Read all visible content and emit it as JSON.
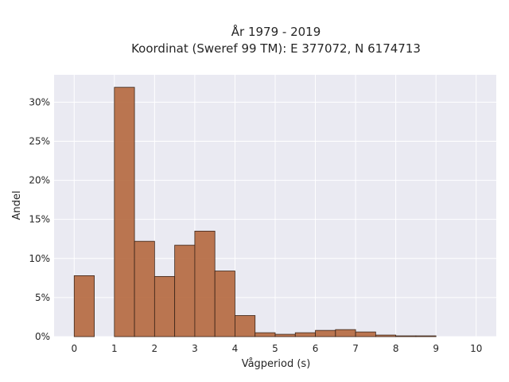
{
  "chart_data": {
    "type": "bar",
    "title": "År 1979 - 2019",
    "subtitle": "Koordinat (Sweref 99 TM): E 377072, N 6174713",
    "xlabel": "Vågperiod (s)",
    "ylabel": "Andel",
    "xlim": [
      -0.5,
      10.5
    ],
    "ylim": [
      0,
      0.335
    ],
    "grid": true,
    "bin_width": 0.5,
    "x_ticks": [
      "0",
      "1",
      "2",
      "3",
      "4",
      "5",
      "6",
      "7",
      "8",
      "9",
      "10"
    ],
    "y_ticks": [
      "0%",
      "5%",
      "10%",
      "15%",
      "20%",
      "25%",
      "30%"
    ],
    "bins": [
      {
        "start": 0.0,
        "end": 0.5,
        "value": 0.078
      },
      {
        "start": 1.0,
        "end": 1.5,
        "value": 0.319
      },
      {
        "start": 1.5,
        "end": 2.0,
        "value": 0.122
      },
      {
        "start": 2.0,
        "end": 2.5,
        "value": 0.077
      },
      {
        "start": 2.5,
        "end": 3.0,
        "value": 0.117
      },
      {
        "start": 3.0,
        "end": 3.5,
        "value": 0.135
      },
      {
        "start": 3.5,
        "end": 4.0,
        "value": 0.084
      },
      {
        "start": 4.0,
        "end": 4.5,
        "value": 0.027
      },
      {
        "start": 4.5,
        "end": 5.0,
        "value": 0.005
      },
      {
        "start": 5.0,
        "end": 5.5,
        "value": 0.003
      },
      {
        "start": 5.5,
        "end": 6.0,
        "value": 0.005
      },
      {
        "start": 6.0,
        "end": 6.5,
        "value": 0.008
      },
      {
        "start": 6.5,
        "end": 7.0,
        "value": 0.009
      },
      {
        "start": 7.0,
        "end": 7.5,
        "value": 0.006
      },
      {
        "start": 7.5,
        "end": 8.0,
        "value": 0.002
      },
      {
        "start": 8.0,
        "end": 8.5,
        "value": 0.001
      },
      {
        "start": 8.5,
        "end": 9.0,
        "value": 0.001
      }
    ],
    "colors": {
      "bar_fill": "#b5683e",
      "bar_stroke": "#3a2418",
      "plot_background": "#eaeaf2",
      "grid": "#ffffff"
    }
  }
}
